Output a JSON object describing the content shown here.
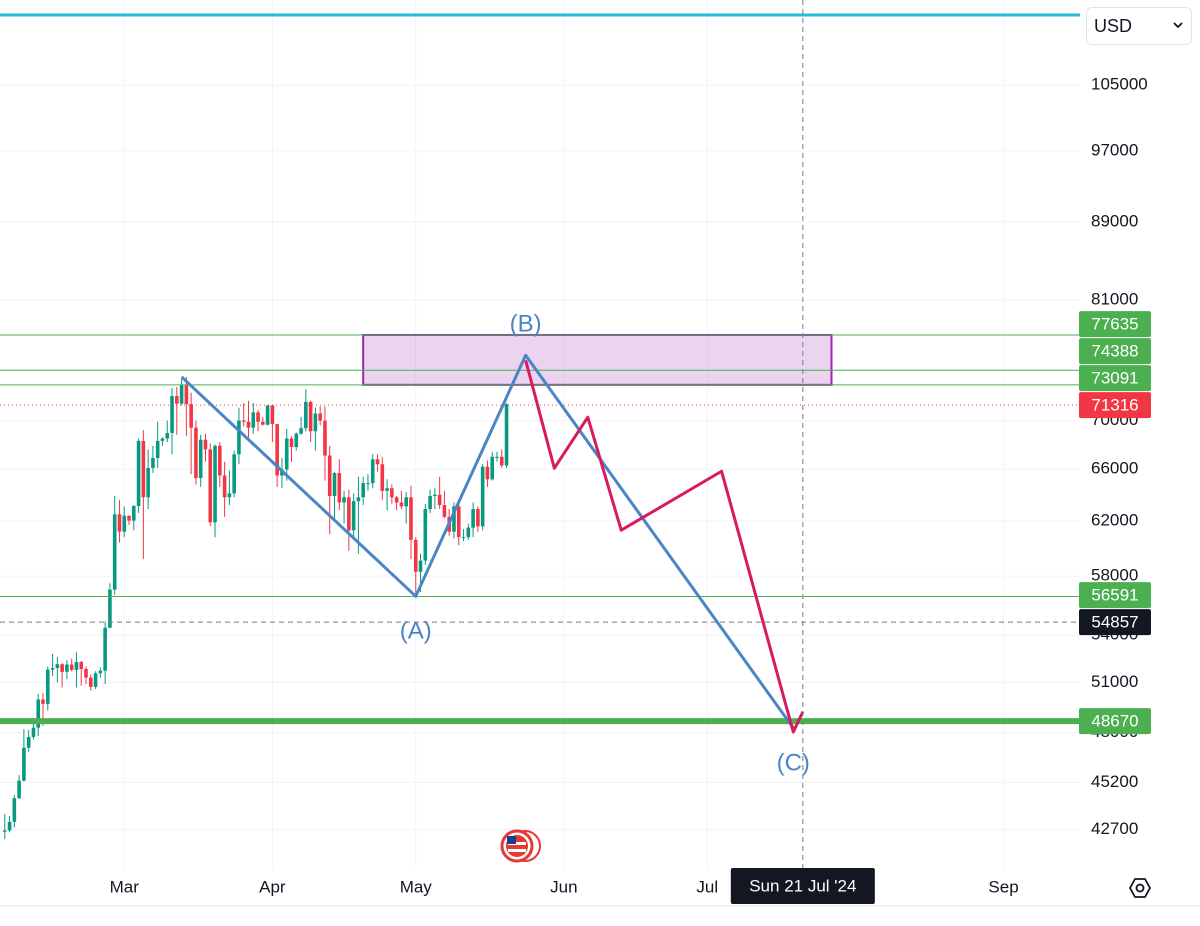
{
  "currency": "USD",
  "chart_data": {
    "type": "candlestick",
    "x": [
      "2024-02-05",
      "2024-02-06",
      "2024-02-07",
      "2024-02-08",
      "2024-02-09",
      "2024-02-10",
      "2024-02-11",
      "2024-02-12",
      "2024-02-13",
      "2024-02-14",
      "2024-02-15",
      "2024-02-16",
      "2024-02-17",
      "2024-02-18",
      "2024-02-19",
      "2024-02-20",
      "2024-02-21",
      "2024-02-22",
      "2024-02-23",
      "2024-02-24",
      "2024-02-25",
      "2024-02-26",
      "2024-02-27",
      "2024-02-28",
      "2024-02-29",
      "2024-03-01",
      "2024-03-02",
      "2024-03-03",
      "2024-03-04",
      "2024-03-05",
      "2024-03-06",
      "2024-03-07",
      "2024-03-08",
      "2024-03-09",
      "2024-03-10",
      "2024-03-11",
      "2024-03-12",
      "2024-03-13",
      "2024-03-14",
      "2024-03-15",
      "2024-03-16",
      "2024-03-17",
      "2024-03-18",
      "2024-03-19",
      "2024-03-20",
      "2024-03-21",
      "2024-03-22",
      "2024-03-23",
      "2024-03-24",
      "2024-03-25",
      "2024-03-26",
      "2024-03-27",
      "2024-03-28",
      "2024-03-29",
      "2024-03-30",
      "2024-03-31",
      "2024-04-01",
      "2024-04-02",
      "2024-04-03",
      "2024-04-04",
      "2024-04-05",
      "2024-04-06",
      "2024-04-07",
      "2024-04-08",
      "2024-04-09",
      "2024-04-10",
      "2024-04-11",
      "2024-04-12",
      "2024-04-13",
      "2024-04-14",
      "2024-04-15",
      "2024-04-16",
      "2024-04-17",
      "2024-04-18",
      "2024-04-19",
      "2024-04-20",
      "2024-04-21",
      "2024-04-22",
      "2024-04-23",
      "2024-04-24",
      "2024-04-25",
      "2024-04-26",
      "2024-04-27",
      "2024-04-28",
      "2024-04-29",
      "2024-04-30",
      "2024-05-01",
      "2024-05-02",
      "2024-05-03",
      "2024-05-04",
      "2024-05-05",
      "2024-05-06",
      "2024-05-07",
      "2024-05-08",
      "2024-05-09",
      "2024-05-10",
      "2024-05-11",
      "2024-05-12",
      "2024-05-13",
      "2024-05-14",
      "2024-05-15",
      "2024-05-16",
      "2024-05-17",
      "2024-05-18",
      "2024-05-19",
      "2024-05-20"
    ],
    "open": [
      42580,
      42650,
      43090,
      44340,
      45290,
      47130,
      47750,
      48290,
      49960,
      49700,
      51800,
      51900,
      52140,
      51660,
      52120,
      51780,
      52280,
      51840,
      51300,
      50730,
      51570,
      51730,
      54490,
      57060,
      62500,
      61200,
      62400,
      62030,
      63130,
      68300,
      63800,
      66100,
      66900,
      68300,
      68500,
      68960,
      72100,
      71450,
      73100,
      71400,
      69400,
      65300,
      68400,
      67600,
      61900,
      67900,
      65500,
      63800,
      64100,
      67200,
      70000,
      69900,
      69400,
      70700,
      69900,
      69650,
      71300,
      69700,
      65500,
      65980,
      68500,
      67800,
      68900,
      69360,
      71600,
      69100,
      70600,
      70000,
      67100,
      63900,
      65700,
      63400,
      63800,
      61300,
      63500,
      63800,
      64900,
      64900,
      66800,
      66400,
      64300,
      64500,
      63800,
      63400,
      63100,
      63800,
      60600,
      58300,
      59100,
      62900,
      63900,
      64000,
      63200,
      62300,
      61200,
      63100,
      60800,
      60800,
      61500,
      62900,
      61600,
      66200,
      65200,
      67000,
      67000,
      66300
    ],
    "high": [
      43500,
      43400,
      44500,
      45600,
      48200,
      48150,
      48600,
      50300,
      50350,
      52000,
      52800,
      52600,
      52200,
      52400,
      52500,
      52900,
      52350,
      52000,
      51500,
      51700,
      51950,
      54900,
      57500,
      63900,
      63600,
      63100,
      62400,
      63200,
      68500,
      69200,
      67600,
      67900,
      69900,
      68600,
      70000,
      72800,
      72900,
      73600,
      73800,
      72400,
      70000,
      68800,
      68900,
      68100,
      68000,
      68200,
      66600,
      65900,
      67500,
      71100,
      71500,
      71700,
      71500,
      70900,
      70300,
      71300,
      71300,
      69700,
      66900,
      69300,
      68700,
      69000,
      70300,
      72700,
      71700,
      71100,
      71200,
      71200,
      67900,
      65800,
      66800,
      64300,
      64400,
      64100,
      65400,
      65400,
      65600,
      67200,
      67200,
      67000,
      65200,
      64800,
      63900,
      64300,
      64200,
      64700,
      60800,
      59600,
      63300,
      64400,
      64500,
      65400,
      64300,
      62900,
      63400,
      63400,
      61400,
      61800,
      63400,
      63100,
      66400,
      66700,
      67400,
      67400,
      67600,
      71500
    ],
    "low": [
      42200,
      42550,
      42800,
      44300,
      45250,
      46900,
      47600,
      47800,
      48400,
      49300,
      51400,
      51000,
      50700,
      51200,
      51700,
      50700,
      50800,
      50900,
      50500,
      50600,
      51300,
      50900,
      54450,
      56700,
      60400,
      60800,
      61700,
      61300,
      62600,
      59200,
      62900,
      65700,
      66100,
      67900,
      68200,
      67200,
      68800,
      71300,
      68700,
      65600,
      64800,
      64600,
      66600,
      61600,
      60800,
      64600,
      62300,
      63200,
      63800,
      66400,
      69500,
      68400,
      68900,
      69100,
      69600,
      69600,
      68200,
      64600,
      64500,
      65100,
      66600,
      67500,
      68800,
      69100,
      68200,
      67500,
      69600,
      65100,
      61000,
      62200,
      62800,
      61800,
      59800,
      60800,
      59600,
      63200,
      64300,
      64500,
      65800,
      63600,
      62800,
      63300,
      62800,
      62900,
      61800,
      59200,
      56600,
      56900,
      58800,
      62600,
      62900,
      62900,
      62200,
      60900,
      60700,
      60200,
      60500,
      60600,
      60800,
      61200,
      61300,
      64600,
      65100,
      66600,
      66100,
      66100
    ],
    "close": [
      42650,
      43090,
      44340,
      45290,
      47130,
      47750,
      48290,
      49960,
      49700,
      51800,
      51900,
      52140,
      51660,
      52120,
      51780,
      52280,
      51840,
      51300,
      50730,
      51570,
      51730,
      54490,
      57060,
      62500,
      61200,
      62400,
      62030,
      63130,
      68300,
      63800,
      66100,
      66900,
      68300,
      68500,
      68960,
      72100,
      71450,
      73100,
      71400,
      69400,
      65300,
      68400,
      67600,
      61900,
      67900,
      65500,
      63800,
      64100,
      67200,
      70000,
      69900,
      69400,
      70700,
      69900,
      69650,
      71300,
      69700,
      65500,
      65980,
      68500,
      67800,
      68900,
      69360,
      71600,
      69100,
      70600,
      70000,
      67100,
      63900,
      65700,
      63400,
      63800,
      61300,
      63500,
      63800,
      64900,
      64900,
      66800,
      66400,
      64300,
      64500,
      63800,
      63400,
      63100,
      63800,
      60600,
      58300,
      59100,
      62900,
      63900,
      64000,
      63200,
      62300,
      61200,
      63100,
      60800,
      60800,
      61500,
      62900,
      61600,
      66200,
      65200,
      67000,
      67000,
      66300,
      71400
    ],
    "up_color": "#089981",
    "down_color": "#f23645",
    "log_scale": true,
    "grid": true,
    "ylim": [
      40900,
      116400
    ],
    "yticks": [
      42700,
      45200,
      48000,
      51000,
      54000,
      58000,
      62000,
      66000,
      70000,
      81000,
      89000,
      97000,
      105000
    ],
    "xlim": [
      "2024-02-04",
      "2024-09-17"
    ],
    "xticks": [
      {
        "value": "2024-03-01",
        "label": "Mar"
      },
      {
        "value": "2024-04-01",
        "label": "Apr"
      },
      {
        "value": "2024-05-01",
        "label": "May"
      },
      {
        "value": "2024-06-01",
        "label": "Jun"
      },
      {
        "value": "2024-07-01",
        "label": "Jul"
      },
      {
        "value": "2024-09-01",
        "label": "Sep"
      }
    ],
    "levels": [
      {
        "value": 114300,
        "color": "#26bcd7",
        "width": 3
      },
      {
        "value": 77635,
        "color": "#4caf50",
        "width": 1,
        "badge_color": "#4caf50"
      },
      {
        "value": 74388,
        "color": "#4caf50",
        "width": 1,
        "badge_color": "#4caf50"
      },
      {
        "value": 73091,
        "color": "#4caf50",
        "width": 1,
        "badge_color": "#4caf50"
      },
      {
        "value": 56591,
        "color": "#4caf50",
        "width": 1,
        "badge_color": "#4caf50"
      },
      {
        "value": 48670,
        "color": "#4caf50",
        "width": 6,
        "badge_color": "#4caf50"
      }
    ],
    "last_price": {
      "value": 71316,
      "color": "#f23645"
    },
    "crosshair": {
      "x": "2024-07-21",
      "x_label": "Sun 21 Jul '24",
      "y": 54857
    },
    "zone": {
      "x": [
        "2024-04-20",
        "2024-07-27"
      ],
      "y": [
        73091,
        77635
      ],
      "color": "#9c27b0"
    },
    "waves": [
      {
        "color": "#4a86c5",
        "x": [
          "2024-03-13",
          "2024-05-01",
          "2024-05-24",
          "2024-07-19"
        ],
        "values": [
          73800,
          56600,
          75750,
          48270
        ],
        "labels": [
          null,
          "(A)",
          "(B)",
          "(C)"
        ]
      },
      {
        "color": "#d81b60",
        "x": [
          "2024-05-24",
          "2024-05-30",
          "2024-06-06",
          "2024-06-13",
          "2024-07-04",
          "2024-07-19",
          "2024-07-21"
        ],
        "values": [
          75290,
          66080,
          70290,
          61310,
          65840,
          48040,
          49220
        ]
      }
    ]
  }
}
